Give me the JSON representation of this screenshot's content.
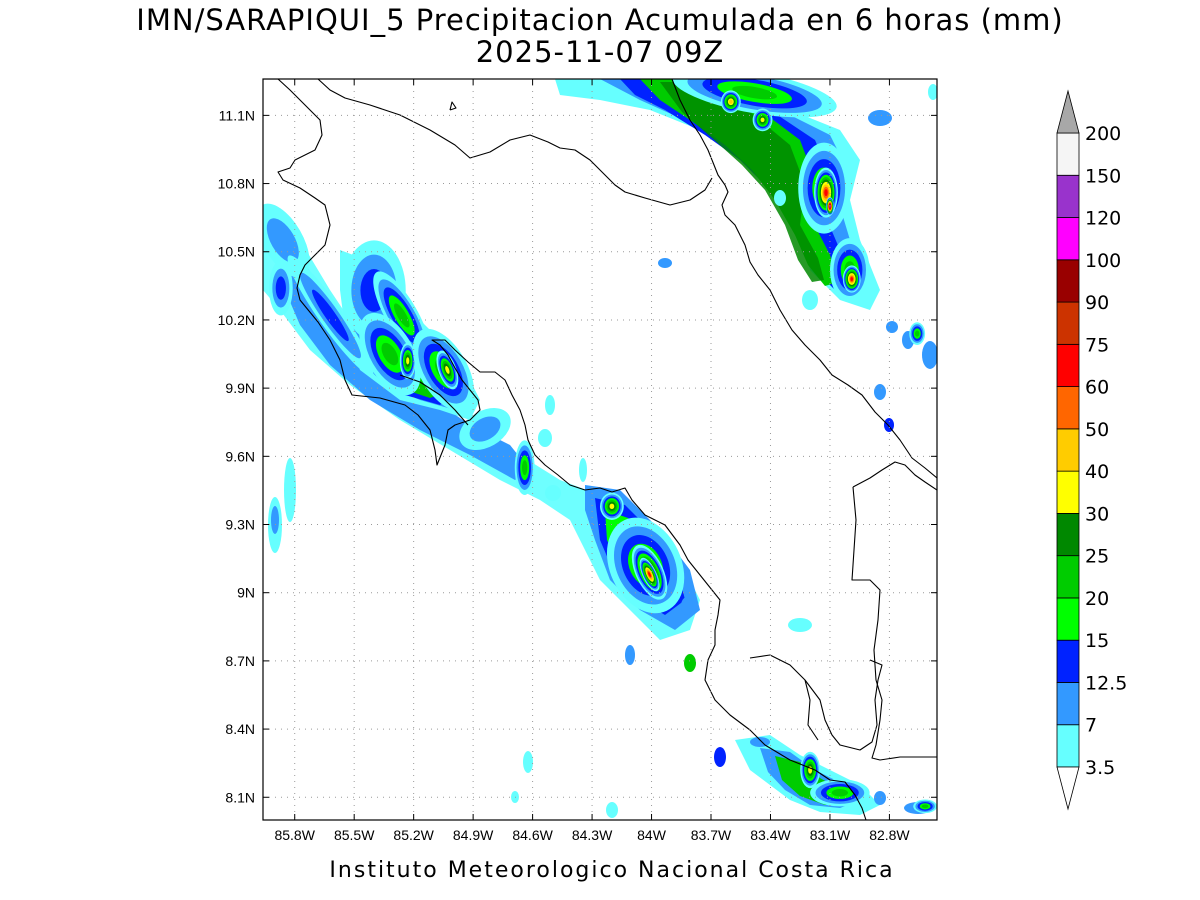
{
  "title": {
    "line1": "IMN/SARAPIQUI_5 Precipitacion Acumulada en 6 horas (mm)",
    "line2": "2025-11-07 09Z"
  },
  "footer": "Instituto Meteorologico Nacional Costa Rica",
  "map": {
    "lon_range": [
      -85.96,
      -82.56
    ],
    "lat_range": [
      8.0,
      11.26
    ],
    "x_ticks": [
      {
        "lon": -85.8,
        "label": "85.8W"
      },
      {
        "lon": -85.5,
        "label": "85.5W"
      },
      {
        "lon": -85.2,
        "label": "85.2W"
      },
      {
        "lon": -84.9,
        "label": "84.9W"
      },
      {
        "lon": -84.6,
        "label": "84.6W"
      },
      {
        "lon": -84.3,
        "label": "84.3W"
      },
      {
        "lon": -84.0,
        "label": "84W"
      },
      {
        "lon": -83.7,
        "label": "83.7W"
      },
      {
        "lon": -83.4,
        "label": "83.4W"
      },
      {
        "lon": -83.1,
        "label": "83.1W"
      },
      {
        "lon": -82.8,
        "label": "82.8W"
      }
    ],
    "y_ticks": [
      {
        "lat": 11.1,
        "label": "11.1N"
      },
      {
        "lat": 10.8,
        "label": "10.8N"
      },
      {
        "lat": 10.5,
        "label": "10.5N"
      },
      {
        "lat": 10.2,
        "label": "10.2N"
      },
      {
        "lat": 9.9,
        "label": "9.9N"
      },
      {
        "lat": 9.6,
        "label": "9.6N"
      },
      {
        "lat": 9.3,
        "label": "9.3N"
      },
      {
        "lat": 9.0,
        "label": "9N"
      },
      {
        "lat": 8.7,
        "label": "8.7N"
      },
      {
        "lat": 8.4,
        "label": "8.4N"
      },
      {
        "lat": 8.1,
        "label": "8.1N"
      }
    ],
    "grid": true
  },
  "colorbar": {
    "labels": [
      "3.5",
      "7",
      "12.5",
      "15",
      "20",
      "25",
      "30",
      "40",
      "50",
      "60",
      "75",
      "90",
      "100",
      "120",
      "150",
      "200"
    ],
    "colors": [
      "#66ffff",
      "#3399ff",
      "#0022ff",
      "#00ff00",
      "#00cc00",
      "#008800",
      "#ffff00",
      "#ffcc00",
      "#ff6600",
      "#ff0000",
      "#cc3300",
      "#990000",
      "#ff00ff",
      "#9933cc",
      "#f5f5f5"
    ],
    "over_color": "#a8a8a8",
    "under_color": "#ffffff"
  },
  "precip_cells": [
    {
      "lon": -85.86,
      "lat": 10.55,
      "rx": 0.1,
      "ry": 0.18,
      "rot": -30,
      "level": 1
    },
    {
      "lon": -85.87,
      "lat": 10.34,
      "rx": 0.06,
      "ry": 0.12,
      "rot": 0,
      "level": 2
    },
    {
      "lon": -85.62,
      "lat": 10.22,
      "rx": 0.06,
      "ry": 0.32,
      "rot": -35,
      "level": 2
    },
    {
      "lon": -85.4,
      "lat": 10.33,
      "rx": 0.16,
      "ry": 0.22,
      "rot": 0,
      "level": 2
    },
    {
      "lon": -85.26,
      "lat": 10.22,
      "rx": 0.08,
      "ry": 0.22,
      "rot": -30,
      "level": 4
    },
    {
      "lon": -85.32,
      "lat": 10.05,
      "rx": 0.12,
      "ry": 0.2,
      "rot": -30,
      "level": 4
    },
    {
      "lon": -85.23,
      "lat": 10.02,
      "rx": 0.04,
      "ry": 0.08,
      "rot": 0,
      "level": 6
    },
    {
      "lon": -85.05,
      "lat": 9.98,
      "rx": 0.12,
      "ry": 0.2,
      "rot": -30,
      "level": 4
    },
    {
      "lon": -85.03,
      "lat": 9.98,
      "rx": 0.045,
      "ry": 0.09,
      "rot": -20,
      "level": 6
    },
    {
      "lon": -84.84,
      "lat": 9.72,
      "rx": 0.14,
      "ry": 0.08,
      "rot": -30,
      "level": 1
    },
    {
      "lon": -84.64,
      "lat": 9.55,
      "rx": 0.05,
      "ry": 0.12,
      "rot": 0,
      "level": 4
    },
    {
      "lon": -84.2,
      "lat": 9.38,
      "rx": 0.06,
      "ry": 0.06,
      "rot": 0,
      "level": 6
    },
    {
      "lon": -84.03,
      "lat": 9.12,
      "rx": 0.18,
      "ry": 0.22,
      "rot": -25,
      "level": 4
    },
    {
      "lon": -84.01,
      "lat": 9.09,
      "rx": 0.07,
      "ry": 0.13,
      "rot": -25,
      "level": 8
    },
    {
      "lon": -84.01,
      "lat": 9.08,
      "rx": 0.035,
      "ry": 0.08,
      "rot": -25,
      "level": 9
    },
    {
      "lon": -83.48,
      "lat": 11.2,
      "rx": 0.42,
      "ry": 0.09,
      "rot": 10,
      "level": 4
    },
    {
      "lon": -83.6,
      "lat": 11.16,
      "rx": 0.05,
      "ry": 0.05,
      "rot": 0,
      "level": 7
    },
    {
      "lon": -83.44,
      "lat": 11.08,
      "rx": 0.05,
      "ry": 0.05,
      "rot": 0,
      "level": 6
    },
    {
      "lon": -83.13,
      "lat": 10.78,
      "rx": 0.13,
      "ry": 0.2,
      "rot": 0,
      "level": 4
    },
    {
      "lon": -83.12,
      "lat": 10.76,
      "rx": 0.06,
      "ry": 0.11,
      "rot": 0,
      "level": 9
    },
    {
      "lon": -83.1,
      "lat": 10.7,
      "rx": 0.02,
      "ry": 0.04,
      "rot": 0,
      "level": 13
    },
    {
      "lon": -83.0,
      "lat": 10.42,
      "rx": 0.1,
      "ry": 0.14,
      "rot": 0,
      "level": 4
    },
    {
      "lon": -82.99,
      "lat": 10.38,
      "rx": 0.045,
      "ry": 0.06,
      "rot": 0,
      "level": 9
    },
    {
      "lon": -82.66,
      "lat": 10.14,
      "rx": 0.04,
      "ry": 0.05,
      "rot": 0,
      "level": 4
    },
    {
      "lon": -83.2,
      "lat": 8.22,
      "rx": 0.05,
      "ry": 0.08,
      "rot": 0,
      "level": 6
    },
    {
      "lon": -83.05,
      "lat": 8.12,
      "rx": 0.15,
      "ry": 0.06,
      "rot": 0,
      "level": 4
    },
    {
      "lon": -82.62,
      "lat": 8.06,
      "rx": 0.06,
      "ry": 0.03,
      "rot": 0,
      "level": 4
    }
  ]
}
